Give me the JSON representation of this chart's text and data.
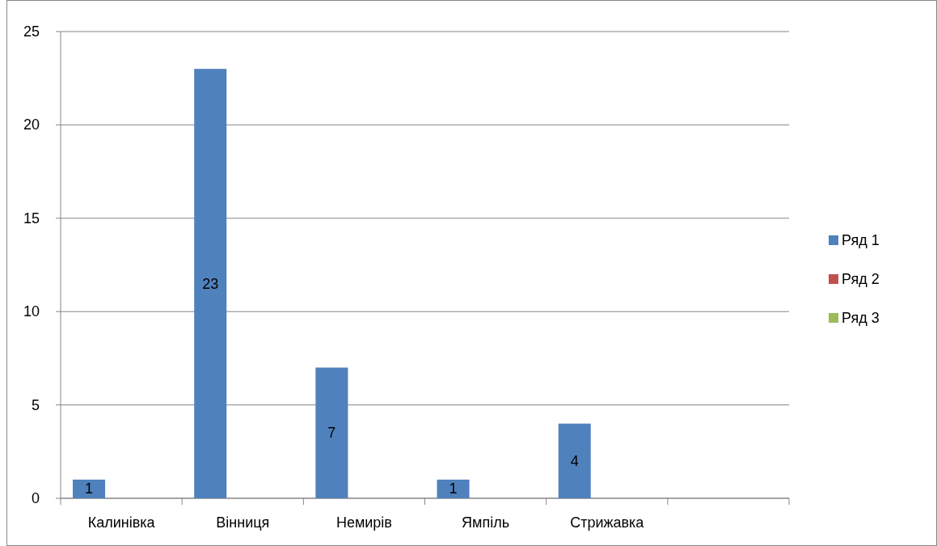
{
  "chart_data": {
    "type": "bar",
    "categories": [
      "Калинівка",
      "Вінниця",
      "Немирів",
      "Ямпіль",
      "Стрижавка",
      null
    ],
    "series": [
      {
        "name": "Ряд 1",
        "color": "#4f81bd",
        "values": [
          1,
          23,
          7,
          1,
          4,
          null
        ]
      },
      {
        "name": "Ряд 2",
        "color": "#c0504d",
        "values": [
          null,
          null,
          null,
          null,
          null,
          null
        ]
      },
      {
        "name": "Ряд 3",
        "color": "#9bbb59",
        "values": [
          null,
          null,
          null,
          null,
          null,
          null
        ]
      }
    ],
    "ylim": [
      0,
      25
    ],
    "yticks": [
      0,
      5,
      10,
      15,
      20,
      25
    ],
    "grid": "y",
    "legend": "right",
    "data_labels": true
  }
}
